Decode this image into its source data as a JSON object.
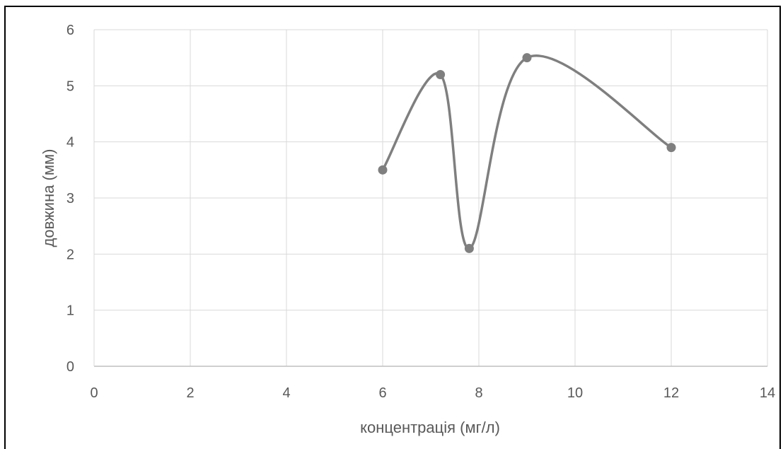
{
  "chart_data": {
    "type": "scatter",
    "title": "",
    "xlabel": "концентрація (мг/л)",
    "ylabel": "довжина (мм)",
    "xlim": [
      0,
      14
    ],
    "ylim": [
      0,
      6
    ],
    "x_ticks": [
      0,
      2,
      4,
      6,
      8,
      10,
      12,
      14
    ],
    "y_ticks": [
      0,
      1,
      2,
      3,
      4,
      5,
      6
    ],
    "grid": true,
    "smooth_line": true,
    "series": [
      {
        "color": "#7f7f7f",
        "x": [
          6,
          7.2,
          7.8,
          9,
          12
        ],
        "y": [
          3.5,
          5.2,
          2.1,
          5.5,
          3.9
        ]
      }
    ]
  }
}
